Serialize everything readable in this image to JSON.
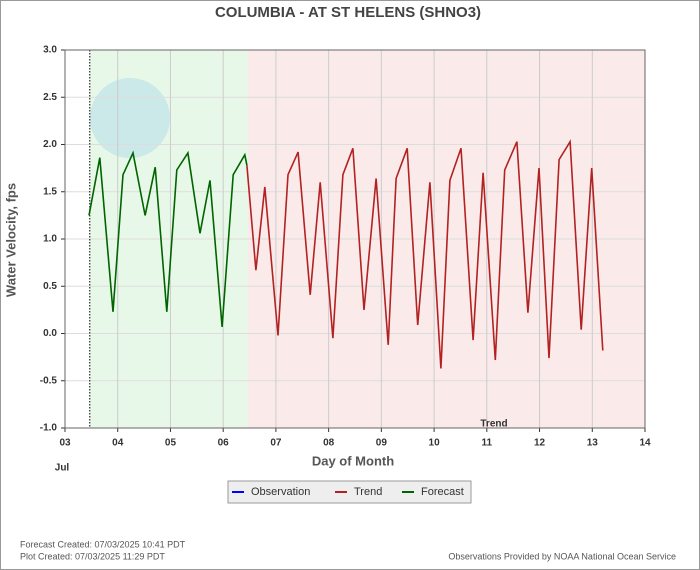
{
  "chart_data": {
    "type": "line",
    "title": "COLUMBIA - AT ST HELENS  (SHNO3)",
    "xlabel": "Day of Month",
    "ylabel": "Water Velocity, fps",
    "month_label": "Jul",
    "annotation": "Trend",
    "notes": [
      "Forecast Created: 07/03/2025 10:41 PDT",
      "Plot Created: 07/03/2025 11:29 PDT",
      "Observations Provided by NOAA National Ocean Service"
    ],
    "xlim": [
      3,
      14
    ],
    "xticks": [
      {
        "value": 3,
        "label": "03"
      },
      {
        "value": 4,
        "label": "04"
      },
      {
        "value": 5,
        "label": "05"
      },
      {
        "value": 6,
        "label": "06"
      },
      {
        "value": 7,
        "label": "07"
      },
      {
        "value": 8,
        "label": "08"
      },
      {
        "value": 9,
        "label": "09"
      },
      {
        "value": 10,
        "label": "10"
      },
      {
        "value": 11,
        "label": "11"
      },
      {
        "value": 12,
        "label": "12"
      },
      {
        "value": 13,
        "label": "13"
      },
      {
        "value": 14,
        "label": "14"
      }
    ],
    "ylim": [
      -1,
      3
    ],
    "yticks": [
      {
        "value": -1,
        "label": "-1.0"
      },
      {
        "value": -0.5,
        "label": "-0.5"
      },
      {
        "value": 0,
        "label": "0.0"
      },
      {
        "value": 0.5,
        "label": "0.5"
      },
      {
        "value": 1,
        "label": "1.0"
      },
      {
        "value": 1.5,
        "label": "1.5"
      },
      {
        "value": 2,
        "label": "2.0"
      },
      {
        "value": 2.5,
        "label": "2.5"
      },
      {
        "value": 3,
        "label": "3.0"
      }
    ],
    "grid": true,
    "now_line": 3.47,
    "shading": [
      {
        "from": 3.47,
        "to": 6.47,
        "color": "#e8f8e8"
      },
      {
        "from": 6.47,
        "to": 14,
        "color": "#fbeaea"
      }
    ],
    "series": [
      {
        "name": "Observation",
        "color": "#0000ff",
        "x": [],
        "values": []
      },
      {
        "name": "Trend",
        "color": "#b22222",
        "x": [
          6.45,
          6.62,
          6.79,
          7.04,
          7.23,
          7.42,
          7.65,
          7.84,
          8.08,
          8.27,
          8.46,
          8.67,
          8.9,
          9.13,
          9.28,
          9.49,
          9.69,
          9.92,
          10.13,
          10.3,
          10.51,
          10.74,
          10.93,
          11.16,
          11.34,
          11.57,
          11.78,
          11.99,
          12.18,
          12.37,
          12.58,
          12.79,
          12.99,
          13.2
        ],
        "values": [
          1.78,
          0.67,
          1.55,
          -0.02,
          1.68,
          1.92,
          0.41,
          1.6,
          -0.05,
          1.68,
          1.96,
          0.25,
          1.64,
          -0.12,
          1.64,
          1.96,
          0.09,
          1.6,
          -0.37,
          1.62,
          1.96,
          -0.07,
          1.7,
          -0.28,
          1.73,
          2.03,
          0.22,
          1.75,
          -0.26,
          1.84,
          2.03,
          0.04,
          1.75,
          -0.18
        ]
      },
      {
        "name": "Forecast",
        "color": "#006400",
        "x": [
          3.455,
          3.66,
          3.91,
          4.1,
          4.29,
          4.52,
          4.71,
          4.93,
          5.12,
          5.33,
          5.56,
          5.75,
          5.98,
          6.19,
          6.41,
          6.45
        ],
        "values": [
          1.25,
          1.86,
          0.23,
          1.68,
          1.91,
          1.25,
          1.76,
          0.23,
          1.73,
          1.91,
          1.06,
          1.62,
          0.07,
          1.68,
          1.89,
          1.78
        ]
      }
    ]
  }
}
